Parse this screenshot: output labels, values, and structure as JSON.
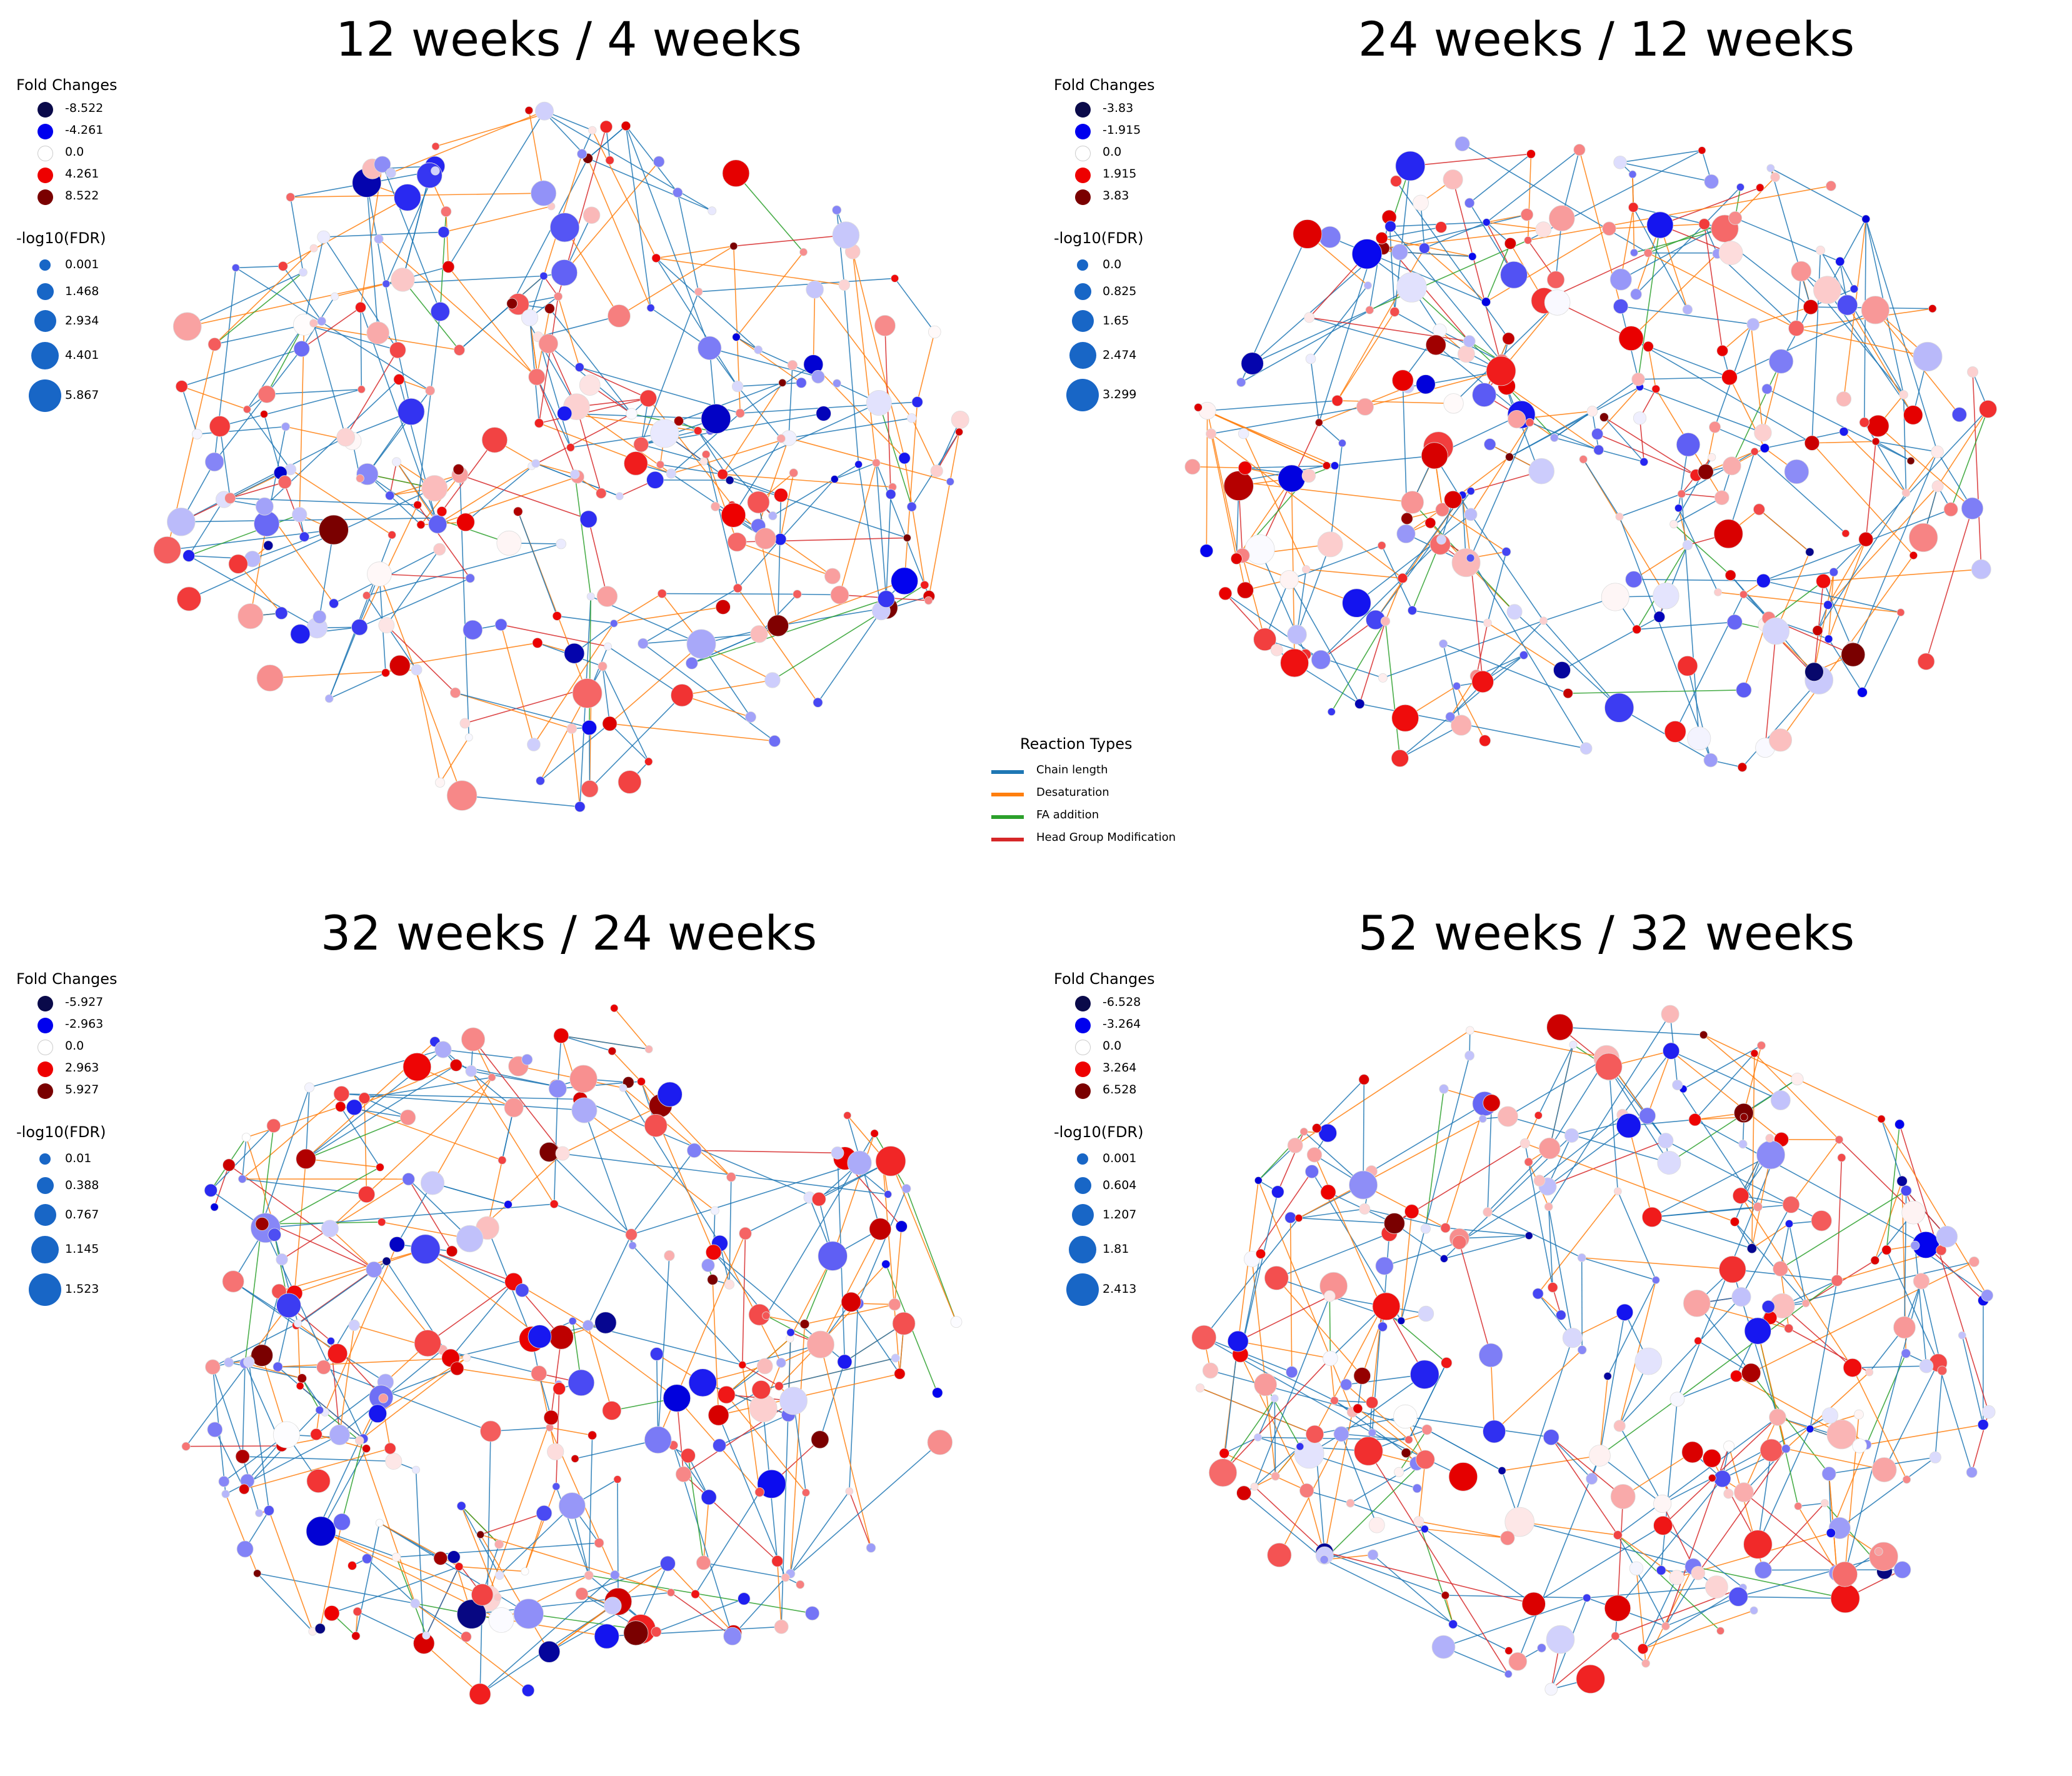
{
  "chart_data": [
    {
      "type": "network",
      "title": "12 weeks / 4 weeks",
      "fold_changes": {
        "title": "Fold Changes",
        "levels": [
          -8.522,
          -4.261,
          0.0,
          4.261,
          8.522
        ],
        "labels": [
          "-8.522",
          "-4.261",
          "0.0",
          "4.261",
          "8.522"
        ]
      },
      "fdr": {
        "title": "-log10(FDR)",
        "levels": [
          0.001,
          1.468,
          2.934,
          4.401,
          5.867
        ],
        "labels": [
          "0.001",
          "1.468",
          "2.934",
          "4.401",
          "5.867"
        ]
      }
    },
    {
      "type": "network",
      "title": "24 weeks / 12 weeks",
      "fold_changes": {
        "title": "Fold Changes",
        "levels": [
          -3.83,
          -1.915,
          0.0,
          1.915,
          3.83
        ],
        "labels": [
          "-3.83",
          "-1.915",
          "0.0",
          "1.915",
          "3.83"
        ]
      },
      "fdr": {
        "title": "-log10(FDR)",
        "levels": [
          0.0,
          0.825,
          1.65,
          2.474,
          3.299
        ],
        "labels": [
          "0.0",
          "0.825",
          "1.65",
          "2.474",
          "3.299"
        ]
      }
    },
    {
      "type": "network",
      "title": "32 weeks / 24 weeks",
      "fold_changes": {
        "title": "Fold Changes",
        "levels": [
          -5.927,
          -2.963,
          0.0,
          2.963,
          5.927
        ],
        "labels": [
          "-5.927",
          "-2.963",
          "0.0",
          "2.963",
          "5.927"
        ]
      },
      "fdr": {
        "title": "-log10(FDR)",
        "levels": [
          0.01,
          0.388,
          0.767,
          1.145,
          1.523
        ],
        "labels": [
          "0.01",
          "0.388",
          "0.767",
          "1.145",
          "1.523"
        ]
      }
    },
    {
      "type": "network",
      "title": "52 weeks / 32 weeks",
      "fold_changes": {
        "title": "Fold Changes",
        "levels": [
          -6.528,
          -3.264,
          0.0,
          3.264,
          6.528
        ],
        "labels": [
          "-6.528",
          "-3.264",
          "0.0",
          "3.264",
          "6.528"
        ]
      },
      "fdr": {
        "title": "-log10(FDR)",
        "levels": [
          0.001,
          0.604,
          1.207,
          1.81,
          2.413
        ],
        "labels": [
          "0.001",
          "0.604",
          "1.207",
          "1.81",
          "2.413"
        ]
      }
    }
  ],
  "reaction_types": {
    "title": "Reaction Types",
    "items": [
      {
        "label": "Chain length",
        "color": "#1f77b4"
      },
      {
        "label": "Desaturation",
        "color": "#ff7f0e"
      },
      {
        "label": "FA addition",
        "color": "#2ca02c"
      },
      {
        "label": "Head Group Modification",
        "color": "#d62728"
      }
    ]
  },
  "colors": {
    "very_low": "#0a0a4a",
    "low": "#0000ee",
    "neutral": "#ffffff",
    "high": "#ee0000",
    "very_high": "#7a0000",
    "size_marker": "#1866c6"
  }
}
